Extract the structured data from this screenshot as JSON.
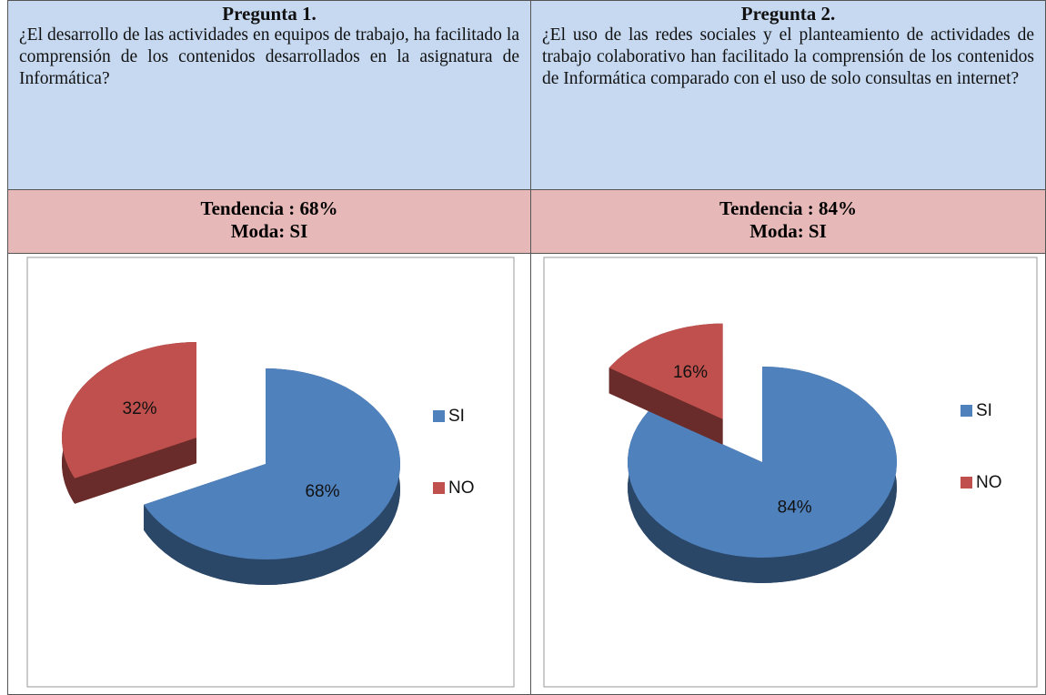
{
  "table": {
    "columns": [
      {
        "title": "Pregunta 1.",
        "question": "¿El desarrollo de las actividades en equipos de trabajo, ha facilitado la comprensión de los contenidos desarrollados en la asignatura de Informática?",
        "tendencia": "Tendencia : 68%",
        "moda": "Moda:  SI"
      },
      {
        "title": "Pregunta 2.",
        "question": "¿El uso de las redes sociales y el planteamiento de actividades de trabajo colaborativo han facilitado la comprensión de los contenidos de Informática comparado con el uso de solo consultas en internet?",
        "tendencia": "Tendencia : 84%",
        "moda": "Moda:  SI"
      }
    ]
  },
  "chart_data": [
    {
      "type": "pie",
      "categories": [
        "SI",
        "NO"
      ],
      "values": [
        68,
        32
      ],
      "value_labels": [
        "68%",
        "32%"
      ],
      "colors": [
        "#4f81bd",
        "#c0504d"
      ],
      "legend": "right"
    },
    {
      "type": "pie",
      "categories": [
        "SI",
        "NO"
      ],
      "values": [
        84,
        16
      ],
      "value_labels": [
        "84%",
        "16%"
      ],
      "colors": [
        "#4f81bd",
        "#c0504d"
      ],
      "legend": "right"
    }
  ]
}
